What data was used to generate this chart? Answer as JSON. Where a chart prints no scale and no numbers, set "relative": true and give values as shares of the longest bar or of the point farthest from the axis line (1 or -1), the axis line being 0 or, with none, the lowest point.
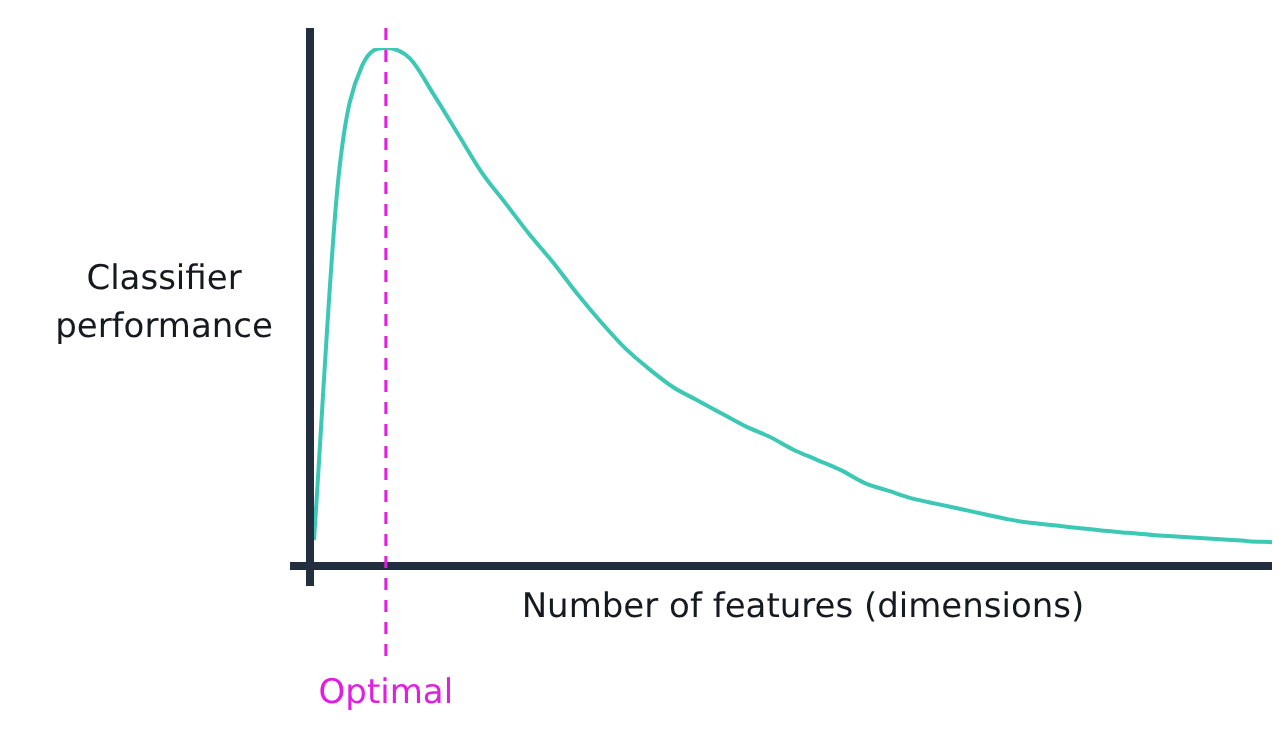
{
  "chart_data": {
    "type": "line",
    "relative": true,
    "xlabel": "Number of features (dimensions)",
    "ylabel": "Classifier performance",
    "categories": [
      null,
      null,
      null,
      null,
      null,
      null,
      null,
      null,
      null,
      null,
      null,
      null,
      null,
      null,
      null,
      null,
      null,
      null,
      null,
      null,
      null,
      null,
      null,
      null,
      null,
      null,
      null,
      null,
      null,
      null,
      null,
      null,
      null,
      null,
      null,
      null,
      null,
      null,
      null,
      null,
      null
    ],
    "series": [
      {
        "color": "#3cc8b4",
        "values": [
          0.05,
          0.74,
          0.965,
          1.0,
          0.98,
          0.91,
          0.835,
          0.76,
          0.7,
          0.64,
          0.585,
          0.525,
          0.47,
          0.42,
          0.38,
          0.345,
          0.32,
          0.295,
          0.27,
          0.25,
          0.225,
          0.205,
          0.185,
          0.16,
          0.145,
          0.13,
          0.12,
          0.11,
          0.1,
          0.09,
          0.083,
          0.078,
          0.073,
          0.068,
          0.064,
          0.06,
          0.057,
          0.054,
          0.051,
          0.048,
          0.046
        ]
      }
    ],
    "annotations": [
      "Optimal"
    ],
    "legend": false,
    "marker": "none",
    "line_style": "solid"
  }
}
